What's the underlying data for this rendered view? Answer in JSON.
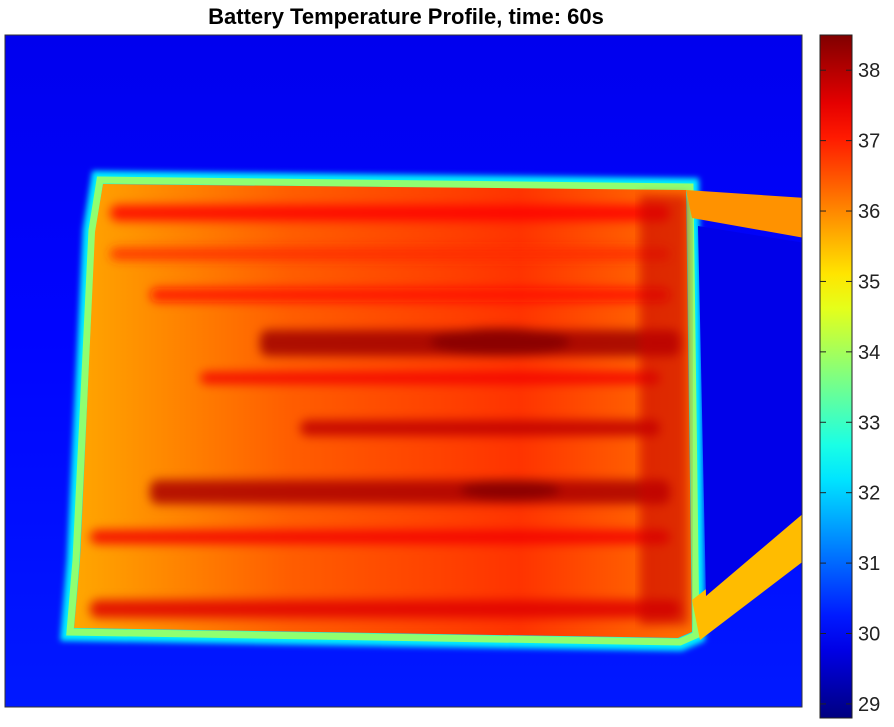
{
  "chart_data": {
    "type": "heatmap",
    "title": "Battery Temperature Profile, time: 60s",
    "xlabel": "",
    "ylabel": "",
    "grid": false,
    "colormap": "jet",
    "colorbar": {
      "limits": [
        28.8,
        38.5
      ],
      "ticks": [
        29,
        30,
        31,
        32,
        33,
        34,
        35,
        36,
        37,
        38
      ],
      "tick_labels": [
        "29",
        "30",
        "31",
        "32",
        "33",
        "34",
        "35",
        "36",
        "37",
        "38"
      ]
    },
    "background_temperature": 30.1,
    "battery_temperature_range": [
      35.4,
      38.4
    ],
    "hottest_zone_temperature": 38.4,
    "tab_temperature": 35.9
  }
}
